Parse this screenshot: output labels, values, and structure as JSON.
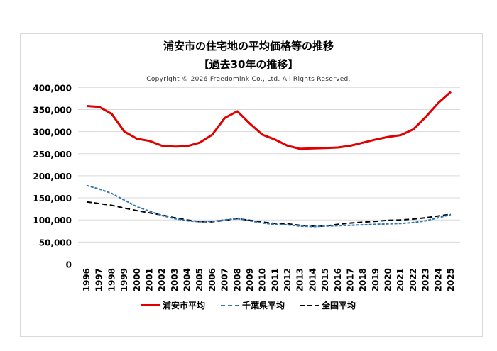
{
  "chart_data": {
    "type": "line",
    "title": "浦安市の住宅地の平均価格等の推移",
    "subtitle": "【過去30年の推移】",
    "copyright": "Copyright © 2026 Freedomink Co., Ltd. All Rights Reserved.",
    "x": [
      1996,
      1997,
      1998,
      1999,
      2000,
      2001,
      2002,
      2003,
      2004,
      2005,
      2006,
      2007,
      2008,
      2009,
      2010,
      2011,
      2012,
      2013,
      2014,
      2015,
      2016,
      2017,
      2018,
      2019,
      2020,
      2021,
      2022,
      2023,
      2024,
      2025
    ],
    "ylim": [
      0,
      400000
    ],
    "yticks": [
      "0",
      "50,000",
      "100,000",
      "150,000",
      "200,000",
      "250,000",
      "300,000",
      "350,000",
      "400,000"
    ],
    "grid": true,
    "legend_position": "bottom",
    "series": [
      {
        "name": "浦安市平均",
        "color": "#e00000",
        "style": "solid",
        "values": [
          358000,
          356000,
          340000,
          300000,
          284000,
          279000,
          268000,
          266000,
          267000,
          275000,
          293000,
          331000,
          346000,
          318000,
          293000,
          282000,
          268000,
          261000,
          262000,
          263000,
          264000,
          268000,
          275000,
          282000,
          288000,
          292000,
          305000,
          333000,
          365000,
          390000
        ]
      },
      {
        "name": "千葉県平均",
        "color": "#2e75b6",
        "style": "dashed-short",
        "values": [
          178000,
          170000,
          160000,
          145000,
          130000,
          120000,
          110000,
          103000,
          98000,
          96000,
          97000,
          100000,
          103000,
          98000,
          93000,
          90000,
          89000,
          86000,
          85000,
          86000,
          87000,
          88000,
          89000,
          90000,
          91000,
          92000,
          94000,
          98000,
          105000,
          112000
        ]
      },
      {
        "name": "全国平均",
        "color": "#000000",
        "style": "dashed",
        "values": [
          141000,
          137000,
          133000,
          127000,
          121000,
          116000,
          111000,
          105000,
          100000,
          96000,
          96000,
          99000,
          103000,
          99000,
          95000,
          92000,
          91000,
          88000,
          86000,
          86000,
          90000,
          93000,
          95000,
          97000,
          99000,
          100000,
          102000,
          105000,
          109000,
          113000
        ]
      }
    ]
  }
}
